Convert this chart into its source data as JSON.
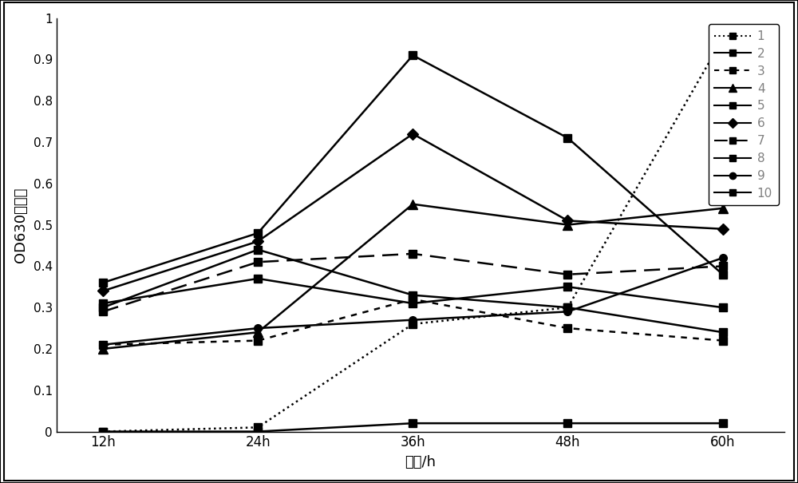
{
  "x_labels": [
    "12h",
    "24h",
    "36h",
    "48h",
    "60h"
  ],
  "x_values": [
    0,
    1,
    2,
    3,
    4
  ],
  "series": [
    {
      "label": "1",
      "values": [
        0.0,
        0.01,
        0.26,
        0.3,
        0.95
      ],
      "linestyle": "dotted",
      "marker": "s",
      "color": "#000000",
      "linewidth": 1.8
    },
    {
      "label": "2",
      "values": [
        0.0,
        0.0,
        0.02,
        0.02,
        0.02
      ],
      "linestyle": "solid",
      "marker": "s",
      "color": "#000000",
      "linewidth": 1.8
    },
    {
      "label": "3",
      "values": [
        0.21,
        0.22,
        0.32,
        0.25,
        0.22
      ],
      "linestyle": "dashed_short",
      "marker": "s",
      "color": "#000000",
      "linewidth": 1.8
    },
    {
      "label": "4",
      "values": [
        0.2,
        0.24,
        0.55,
        0.5,
        0.54
      ],
      "linestyle": "solid",
      "marker": "^",
      "color": "#000000",
      "linewidth": 1.8
    },
    {
      "label": "5",
      "values": [
        0.36,
        0.48,
        0.91,
        0.71,
        0.38
      ],
      "linestyle": "solid",
      "marker": "s",
      "color": "#000000",
      "linewidth": 1.8
    },
    {
      "label": "6",
      "values": [
        0.34,
        0.46,
        0.72,
        0.51,
        0.49
      ],
      "linestyle": "solid",
      "marker": "D",
      "color": "#000000",
      "linewidth": 1.8
    },
    {
      "label": "7",
      "values": [
        0.29,
        0.41,
        0.43,
        0.38,
        0.4
      ],
      "linestyle": "dashed_long",
      "marker": "s",
      "color": "#000000",
      "linewidth": 1.8
    },
    {
      "label": "8",
      "values": [
        0.31,
        0.37,
        0.31,
        0.35,
        0.3
      ],
      "linestyle": "solid",
      "marker": "s",
      "color": "#000000",
      "linewidth": 1.8
    },
    {
      "label": "9",
      "values": [
        0.21,
        0.25,
        0.27,
        0.29,
        0.42
      ],
      "linestyle": "solid",
      "marker": "o",
      "color": "#000000",
      "linewidth": 1.8
    },
    {
      "label": "10",
      "values": [
        0.3,
        0.44,
        0.33,
        0.3,
        0.24
      ],
      "linestyle": "solid",
      "marker": "s",
      "color": "#000000",
      "linewidth": 1.8
    }
  ],
  "ylabel": "OD630吸光値",
  "xlabel": "时间/h",
  "ylim": [
    0,
    1.0
  ],
  "yticks": [
    0,
    0.1,
    0.2,
    0.3,
    0.4,
    0.5,
    0.6,
    0.7,
    0.8,
    0.9,
    1
  ],
  "background_color": "#ffffff",
  "legend_label_color": "#808080",
  "border_color": "#000000"
}
